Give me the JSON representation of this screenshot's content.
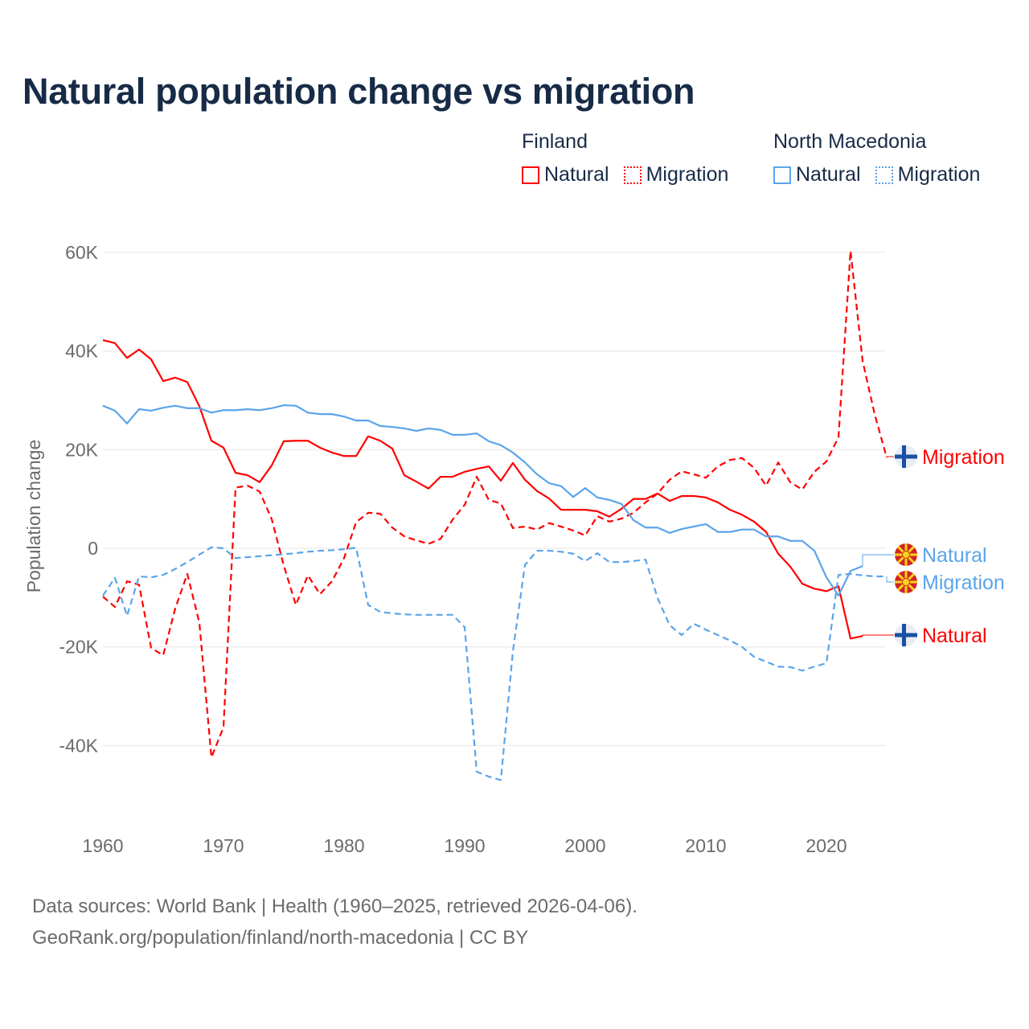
{
  "title": "Natural population change vs migration",
  "legend": [
    {
      "group": "Finland",
      "items": [
        {
          "label": "Natural",
          "style": "solid",
          "color": "#ff0000"
        },
        {
          "label": "Migration",
          "style": "dotted",
          "color": "#ff0000"
        }
      ]
    },
    {
      "group": "North Macedonia",
      "items": [
        {
          "label": "Natural",
          "style": "solid",
          "color": "#5ba4ea"
        },
        {
          "label": "Migration",
          "style": "dotted",
          "color": "#5ba4ea"
        }
      ]
    }
  ],
  "footer": {
    "line1": "Data sources: World Bank | Health (1960–2025, retrieved 2026-04-06).",
    "line2": "GeoRank.org/population/finland/north-macedonia | CC BY"
  },
  "chart_data": {
    "type": "line",
    "title": "Natural population change vs migration",
    "xlabel": "",
    "ylabel": "Population change",
    "xlim": [
      1960,
      2025
    ],
    "ylim": [
      -50000,
      65000
    ],
    "x_ticks": [
      1960,
      1970,
      1980,
      1990,
      2000,
      2010,
      2020
    ],
    "y_ticks": [
      {
        "value": 60000,
        "label": "60K"
      },
      {
        "value": 40000,
        "label": "40K"
      },
      {
        "value": 20000,
        "label": "20K"
      },
      {
        "value": 0,
        "label": "0"
      },
      {
        "value": -20000,
        "label": "-20K"
      },
      {
        "value": -40000,
        "label": "-40K"
      }
    ],
    "grid": true,
    "legend_position": "top-right",
    "start_year": 1960,
    "series": [
      {
        "name": "Finland Natural",
        "country": "Finland",
        "end_label": "Natural",
        "color": "#ff0000",
        "dash": "solid",
        "flag": "finland-flag",
        "values": [
          42200,
          41600,
          38600,
          40300,
          38300,
          33900,
          34600,
          33700,
          28800,
          21800,
          20400,
          15300,
          14800,
          13400,
          16800,
          21700,
          21800,
          21800,
          20400,
          19400,
          18700,
          18700,
          22700,
          21800,
          20200,
          14800,
          13500,
          12100,
          14500,
          14500,
          15500,
          16100,
          16600,
          13700,
          17300,
          13900,
          11600,
          10100,
          7800,
          7800,
          7800,
          7500,
          6400,
          8000,
          10000,
          10000,
          11100,
          9600,
          10600,
          10600,
          10300,
          9300,
          7800,
          6800,
          5400,
          3300,
          -1100,
          -3700,
          -7200,
          -8200,
          -8700,
          -7700,
          -18300,
          -17800
        ]
      },
      {
        "name": "Finland Migration",
        "country": "Finland",
        "end_label": "Migration",
        "color": "#ff0000",
        "dash": "dashed",
        "flag": "finland-flag",
        "values": [
          -9800,
          -11900,
          -6700,
          -7400,
          -20200,
          -21700,
          -12200,
          -5200,
          -15100,
          -42400,
          -36300,
          12300,
          12700,
          11500,
          5900,
          -3500,
          -11500,
          -5500,
          -9300,
          -6700,
          -2000,
          5300,
          7200,
          7000,
          4200,
          2400,
          1600,
          900,
          1900,
          5800,
          8800,
          14500,
          9800,
          9100,
          4100,
          4400,
          3800,
          5100,
          4400,
          3600,
          2600,
          6500,
          5400,
          6000,
          7200,
          9300,
          11100,
          13900,
          15600,
          15000,
          14300,
          16600,
          17900,
          18300,
          16300,
          12700,
          17400,
          13400,
          11900,
          15500,
          17600,
          22500,
          60300,
          38000,
          27200,
          18400
        ]
      },
      {
        "name": "North Macedonia Natural",
        "country": "North Macedonia",
        "end_label": "Natural",
        "color": "#5ba4ea",
        "dash": "solid",
        "flag": "north-macedonia-flag",
        "values": [
          28900,
          27900,
          25300,
          28200,
          27900,
          28500,
          28900,
          28400,
          28400,
          27500,
          28000,
          28000,
          28200,
          28000,
          28400,
          29000,
          28900,
          27500,
          27200,
          27200,
          26700,
          25900,
          25900,
          24800,
          24600,
          24300,
          23800,
          24300,
          24000,
          23000,
          23000,
          23300,
          21700,
          20900,
          19400,
          17400,
          15000,
          13200,
          12600,
          10400,
          12200,
          10300,
          9800,
          9000,
          5700,
          4200,
          4200,
          3100,
          3900,
          4400,
          4900,
          3300,
          3300,
          3800,
          3800,
          2400,
          2400,
          1500,
          1500,
          -500,
          -5900,
          -9600,
          -4600,
          -3600
        ]
      },
      {
        "name": "North Macedonia Migration",
        "country": "North Macedonia",
        "end_label": "Migration",
        "color": "#5ba4ea",
        "dash": "dashed",
        "flag": "north-macedonia-flag",
        "values": [
          -9600,
          -6000,
          -13700,
          -5700,
          -5900,
          -5400,
          -4200,
          -2800,
          -1300,
          200,
          0,
          -2000,
          -1800,
          -1600,
          -1400,
          -1200,
          -1000,
          -700,
          -500,
          -400,
          -200,
          100,
          -11500,
          -12900,
          -13200,
          -13400,
          -13500,
          -13500,
          -13500,
          -13500,
          -16000,
          -45300,
          -46300,
          -47000,
          -20900,
          -3400,
          -500,
          -500,
          -700,
          -1100,
          -2600,
          -1000,
          -2800,
          -2800,
          -2600,
          -2300,
          -10100,
          -15600,
          -17600,
          -15300,
          -16500,
          -17600,
          -18700,
          -20000,
          -22000,
          -23000,
          -24000,
          -24100,
          -24800,
          -24000,
          -23300,
          -5400,
          -5200,
          -5500,
          -5700,
          -5700
        ]
      }
    ]
  }
}
